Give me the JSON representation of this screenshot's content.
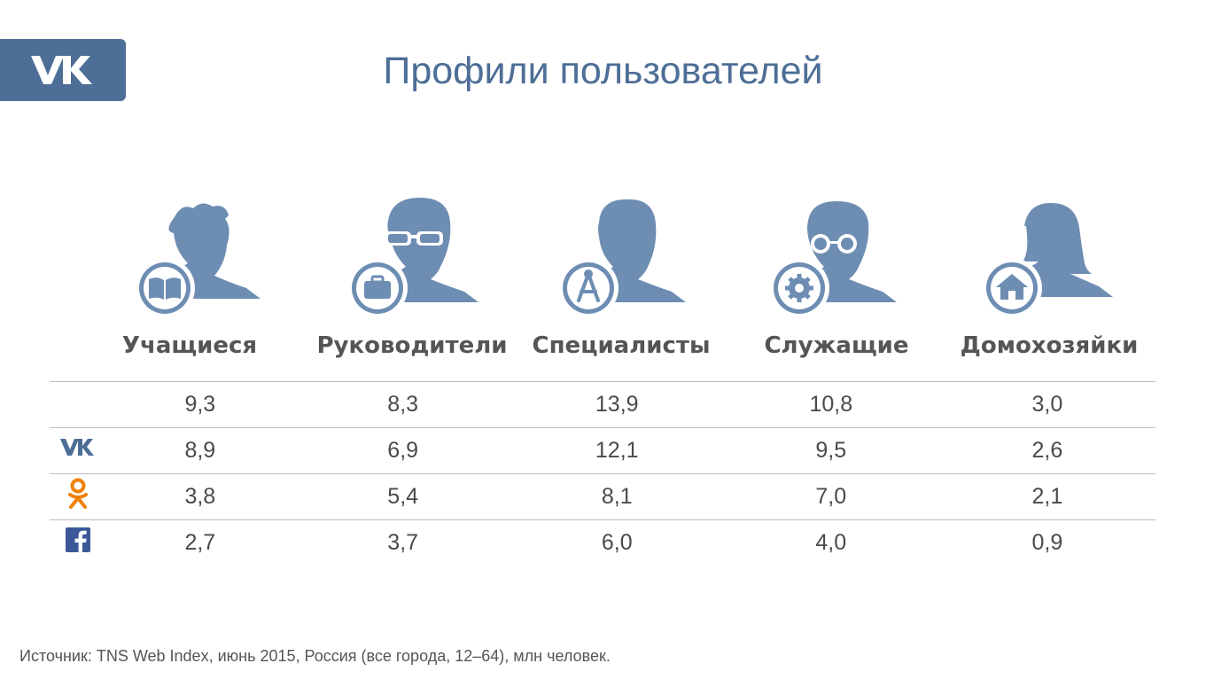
{
  "header": {
    "logo_text": "VK",
    "title": "Профили пользователей"
  },
  "profiles": [
    {
      "label": "Учащиеся",
      "badge_icon": "book-icon",
      "accessory": "messy-hair"
    },
    {
      "label": "Руководители",
      "badge_icon": "briefcase-icon",
      "accessory": "glasses"
    },
    {
      "label": "Специалисты",
      "badge_icon": "compass-icon",
      "accessory": "none"
    },
    {
      "label": "Служащие",
      "badge_icon": "gear-icon",
      "accessory": "round-glasses"
    },
    {
      "label": "Домохозяйки",
      "badge_icon": "house-icon",
      "accessory": "long-hair"
    }
  ],
  "table": {
    "rows": [
      {
        "network_icon": "",
        "values": [
          "9,3",
          "8,3",
          "13,9",
          "10,8",
          "3,0"
        ]
      },
      {
        "network_icon": "vk-icon",
        "values": [
          "8,9",
          "6,9",
          "12,1",
          "9,5",
          "2,6"
        ]
      },
      {
        "network_icon": "odnoklassniki-icon",
        "values": [
          "3,8",
          "5,4",
          "8,1",
          "7,0",
          "2,1"
        ]
      },
      {
        "network_icon": "facebook-icon",
        "values": [
          "2,7",
          "3,7",
          "6,0",
          "4,0",
          "0,9"
        ]
      }
    ]
  },
  "colors": {
    "brand": "#4d6e96",
    "avatar": "#6d8db3",
    "odnoklassniki": "#ee8208",
    "facebook": "#3b5998"
  },
  "footer": {
    "source": "Источник: TNS Web Index, июнь 2015, Россия (все города, 12–64), млн человек."
  }
}
